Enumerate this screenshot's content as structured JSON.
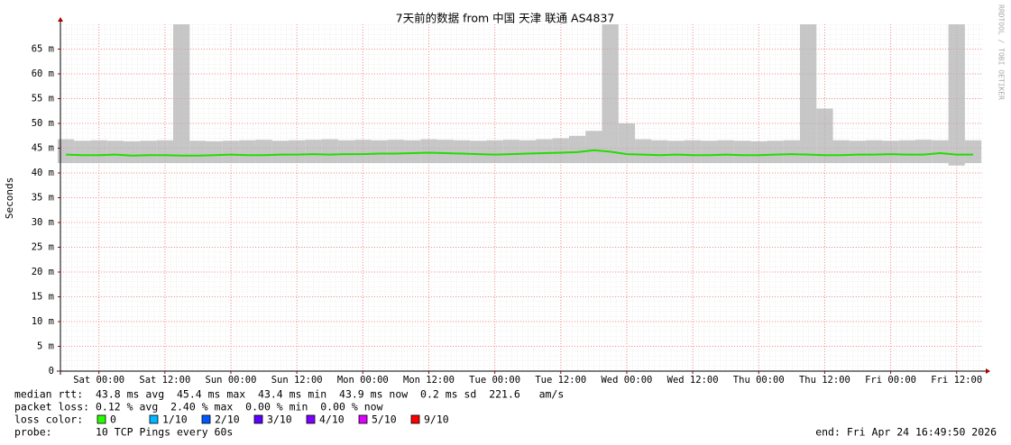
{
  "chart_data": {
    "type": "smokeping",
    "title": "7天前的数据 from 中国 天津 联通 AS4837",
    "y_label": "Seconds",
    "x": [
      -6,
      -3,
      0,
      3,
      6,
      9,
      12,
      15,
      18,
      21,
      24,
      27,
      30,
      33,
      36,
      39,
      42,
      45,
      48,
      51,
      54,
      57,
      60,
      63,
      66,
      69,
      72,
      75,
      78,
      81,
      84,
      87,
      90,
      93,
      96,
      99,
      102,
      105,
      108,
      111,
      114,
      117,
      120,
      123,
      126,
      129,
      132,
      135,
      138,
      141,
      144,
      147,
      150,
      153,
      156,
      159
    ],
    "median": [
      0.0437,
      0.0436,
      0.0436,
      0.0437,
      0.0435,
      0.0436,
      0.0436,
      0.0435,
      0.0435,
      0.0436,
      0.0437,
      0.0436,
      0.0436,
      0.0437,
      0.0437,
      0.0438,
      0.0437,
      0.0438,
      0.0438,
      0.0439,
      0.0439,
      0.044,
      0.0441,
      0.044,
      0.0439,
      0.0438,
      0.0437,
      0.0438,
      0.0439,
      0.044,
      0.0441,
      0.0442,
      0.0446,
      0.0443,
      0.0438,
      0.0437,
      0.0436,
      0.0437,
      0.0436,
      0.0436,
      0.0437,
      0.0436,
      0.0436,
      0.0437,
      0.0438,
      0.0437,
      0.0436,
      0.0436,
      0.0437,
      0.0437,
      0.0438,
      0.0437,
      0.0437,
      0.044,
      0.0437,
      0.0437
    ],
    "smoke_max": [
      0.0468,
      0.0465,
      0.0466,
      0.0465,
      0.0464,
      0.0465,
      0.0466,
      0.07,
      0.0465,
      0.0464,
      0.0465,
      0.0466,
      0.0467,
      0.0465,
      0.0466,
      0.0467,
      0.0468,
      0.0466,
      0.0467,
      0.0466,
      0.0467,
      0.0466,
      0.0468,
      0.0467,
      0.0466,
      0.0465,
      0.0466,
      0.0467,
      0.0466,
      0.0468,
      0.047,
      0.0475,
      0.0485,
      0.07,
      0.05,
      0.0468,
      0.0466,
      0.0465,
      0.0466,
      0.0465,
      0.0466,
      0.0465,
      0.0464,
      0.0465,
      0.0466,
      0.07,
      0.053,
      0.0466,
      0.0465,
      0.0466,
      0.0465,
      0.0466,
      0.0467,
      0.0466,
      0.07,
      0.0466
    ],
    "smoke_min": [
      0.042,
      0.042,
      0.042,
      0.042,
      0.042,
      0.042,
      0.042,
      0.042,
      0.042,
      0.042,
      0.042,
      0.042,
      0.042,
      0.042,
      0.042,
      0.042,
      0.042,
      0.042,
      0.042,
      0.042,
      0.042,
      0.042,
      0.042,
      0.042,
      0.042,
      0.042,
      0.042,
      0.042,
      0.042,
      0.042,
      0.042,
      0.042,
      0.042,
      0.042,
      0.042,
      0.042,
      0.042,
      0.042,
      0.042,
      0.042,
      0.042,
      0.042,
      0.042,
      0.042,
      0.042,
      0.042,
      0.042,
      0.042,
      0.042,
      0.042,
      0.042,
      0.042,
      0.042,
      0.042,
      0.0415,
      0.042
    ],
    "median_color": "#22dd00",
    "smoke_color": "#b4b4b4",
    "xlim": [
      -7,
      160.8
    ],
    "xticks": [
      {
        "value": 0,
        "label": "Sat 00:00"
      },
      {
        "value": 12,
        "label": "Sat 12:00"
      },
      {
        "value": 24,
        "label": "Sun 00:00"
      },
      {
        "value": 36,
        "label": "Sun 12:00"
      },
      {
        "value": 48,
        "label": "Mon 00:00"
      },
      {
        "value": 60,
        "label": "Mon 12:00"
      },
      {
        "value": 72,
        "label": "Tue 00:00"
      },
      {
        "value": 84,
        "label": "Tue 12:00"
      },
      {
        "value": 96,
        "label": "Wed 00:00"
      },
      {
        "value": 108,
        "label": "Wed 12:00"
      },
      {
        "value": 120,
        "label": "Thu 00:00"
      },
      {
        "value": 132,
        "label": "Thu 12:00"
      },
      {
        "value": 144,
        "label": "Fri 00:00"
      },
      {
        "value": 156,
        "label": "Fri 12:00"
      }
    ],
    "ylim": [
      0,
      0.07
    ],
    "yticks": [
      0,
      {
        "value": 0.005,
        "label": "5 m"
      },
      {
        "value": 0.01,
        "label": "10 m"
      },
      {
        "value": 0.015,
        "label": "15 m"
      },
      {
        "value": 0.02,
        "label": "20 m"
      },
      {
        "value": 0.025,
        "label": "25 m"
      },
      {
        "value": 0.03,
        "label": "30 m"
      },
      {
        "value": 0.035,
        "label": "35 m"
      },
      {
        "value": 0.04,
        "label": "40 m"
      },
      {
        "value": 0.045,
        "label": "45 m"
      },
      {
        "value": 0.05,
        "label": "50 m"
      },
      {
        "value": 0.055,
        "label": "55 m"
      },
      {
        "value": 0.06,
        "label": "60 m"
      },
      {
        "value": 0.065,
        "label": "65 m"
      }
    ],
    "grid": true,
    "grid_color": "#ff8c8c"
  },
  "footer": {
    "stats": [
      "median rtt:  43.8 ms avg  45.4 ms max  43.4 ms min  43.9 ms now  0.2 ms sd  221.6   am/s",
      "packet loss: 0.12 % avg  2.40 % max  0.00 % min  0.00 % now"
    ],
    "loss_label": "loss color:",
    "loss_legend": [
      {
        "label": "0",
        "color": "#26ff00"
      },
      {
        "label": "1/10",
        "color": "#00b8ff"
      },
      {
        "label": "2/10",
        "color": "#0059ff"
      },
      {
        "label": "3/10",
        "color": "#5e00ff"
      },
      {
        "label": "4/10",
        "color": "#7e00ff"
      },
      {
        "label": "5/10",
        "color": "#dd00ff"
      },
      {
        "label": "9/10",
        "color": "#ff0000"
      }
    ],
    "probe": "probe:       10 TCP Pings every 60s",
    "end": "end: Fri Apr 24 16:49:50 2026",
    "watermark": "RRDTOOL / TOBI OETIKER"
  }
}
